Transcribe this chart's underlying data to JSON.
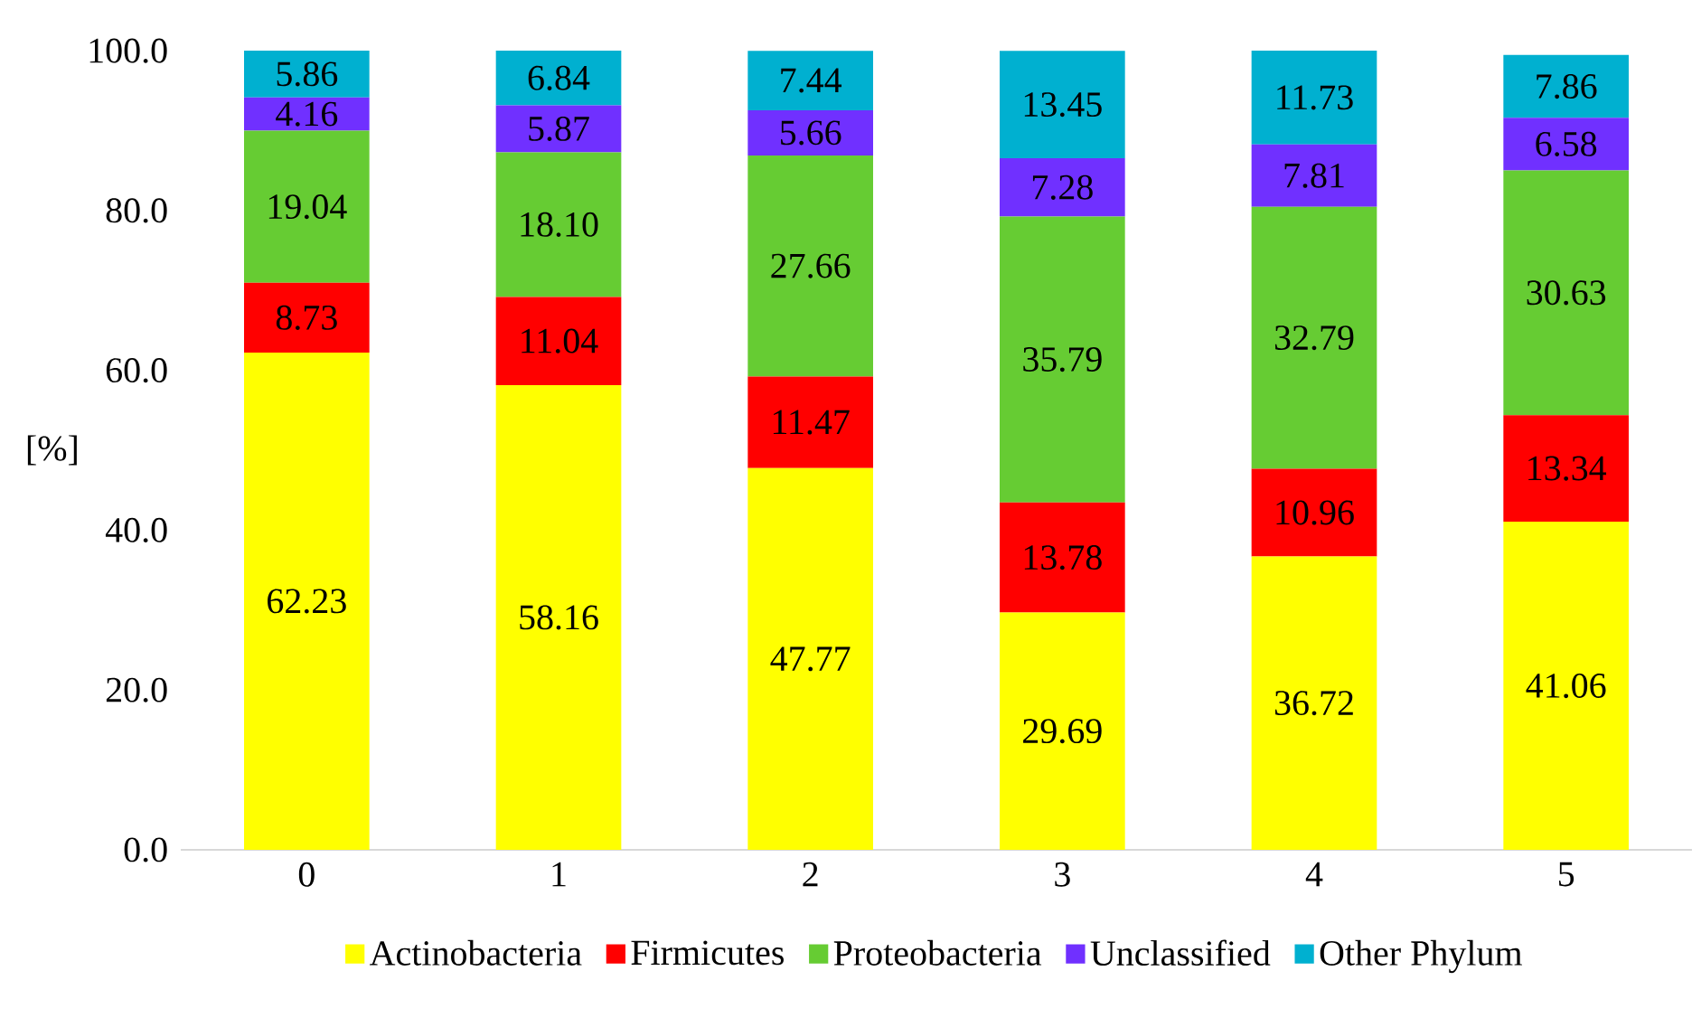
{
  "chart_data": {
    "type": "bar",
    "stacked": true,
    "ylabel": "[%]",
    "categories": [
      "0",
      "1",
      "2",
      "3",
      "4",
      "5"
    ],
    "series": [
      {
        "name": "Actinobacteria",
        "color": "#ffff00",
        "values": [
          62.23,
          58.16,
          47.77,
          29.69,
          36.72,
          41.06
        ],
        "value_labels": [
          "62.23",
          "58.16",
          "47.77",
          "29.69",
          "36.72",
          "41.06"
        ]
      },
      {
        "name": "Firmicutes",
        "color": "#ff0000",
        "values": [
          8.73,
          11.04,
          11.47,
          13.78,
          10.96,
          13.34
        ],
        "value_labels": [
          "8.73",
          "11.04",
          "11.47",
          "13.78",
          "10.96",
          "13.34"
        ]
      },
      {
        "name": "Proteobacteria",
        "color": "#66cc33",
        "values": [
          19.04,
          18.1,
          27.66,
          35.79,
          32.79,
          30.63
        ],
        "value_labels": [
          "19.04",
          "18.10",
          "27.66",
          "35.79",
          "32.79",
          "30.63"
        ]
      },
      {
        "name": "Unclassified",
        "color": "#7030ff",
        "values": [
          4.16,
          5.87,
          5.66,
          7.28,
          7.81,
          6.58
        ],
        "value_labels": [
          "4.16",
          "5.87",
          "5.66",
          "7.28",
          "7.81",
          "6.58"
        ]
      },
      {
        "name": "Other Phylum",
        "color": "#00b0d0",
        "values": [
          5.86,
          6.84,
          7.44,
          13.45,
          11.73,
          7.86
        ],
        "value_labels": [
          "5.86",
          "6.84",
          "7.44",
          "13.45",
          "11.73",
          "7.86"
        ]
      }
    ],
    "ylim": [
      0,
      100.02
    ],
    "yticks": [
      {
        "value": 0,
        "label": "0.0"
      },
      {
        "value": 20,
        "label": "20.0"
      },
      {
        "value": 40,
        "label": "40.0"
      },
      {
        "value": 60,
        "label": "60.0"
      },
      {
        "value": 80,
        "label": "80.0"
      },
      {
        "value": 100,
        "label": "100.0"
      }
    ],
    "legend": "bottom"
  }
}
